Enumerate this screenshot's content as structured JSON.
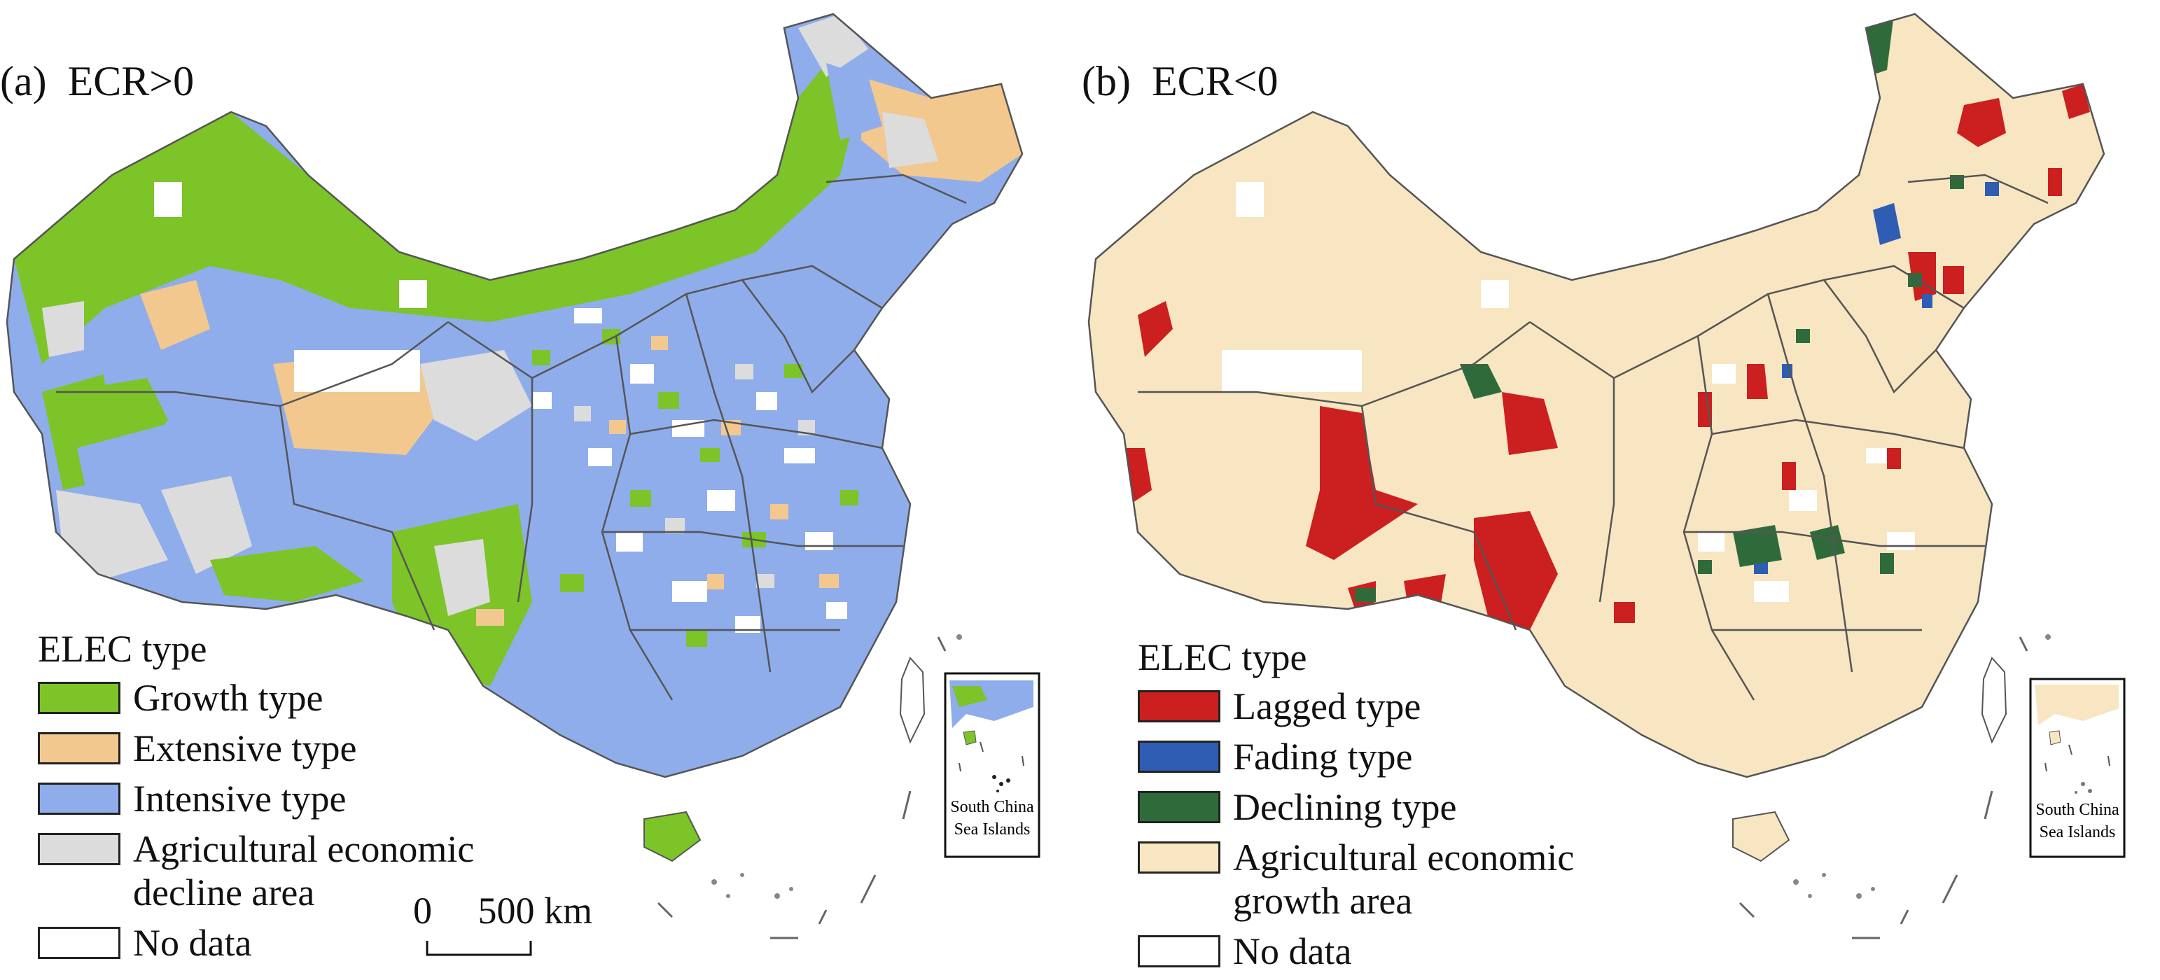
{
  "panels": [
    {
      "id": "a",
      "label": "(a)",
      "condition": "ECR>0",
      "legend_title": "ELEC type",
      "legend": [
        {
          "label": "Growth type",
          "color": "#7cc428"
        },
        {
          "label": "Extensive type",
          "color": "#f2c88f"
        },
        {
          "label": "Intensive type",
          "color": "#8fadeb"
        },
        {
          "label": "Agricultural economic decline area",
          "color": "#dcdcdc"
        },
        {
          "label": "No data",
          "color": "#ffffff"
        }
      ],
      "scale": {
        "zero": "0",
        "value": "500 km"
      },
      "inset_label": "South China Sea Islands"
    },
    {
      "id": "b",
      "label": "(b)",
      "condition": "ECR<0",
      "legend_title": "ELEC type",
      "legend": [
        {
          "label": "Lagged type",
          "color": "#cc1f1f"
        },
        {
          "label": "Fading type",
          "color": "#2e5db3"
        },
        {
          "label": "Declining type",
          "color": "#2f6b3a"
        },
        {
          "label": "Agricultural economic growth area",
          "color": "#f7e6c1"
        },
        {
          "label": "No data",
          "color": "#ffffff"
        }
      ],
      "inset_label": "South China Sea Islands"
    }
  ]
}
